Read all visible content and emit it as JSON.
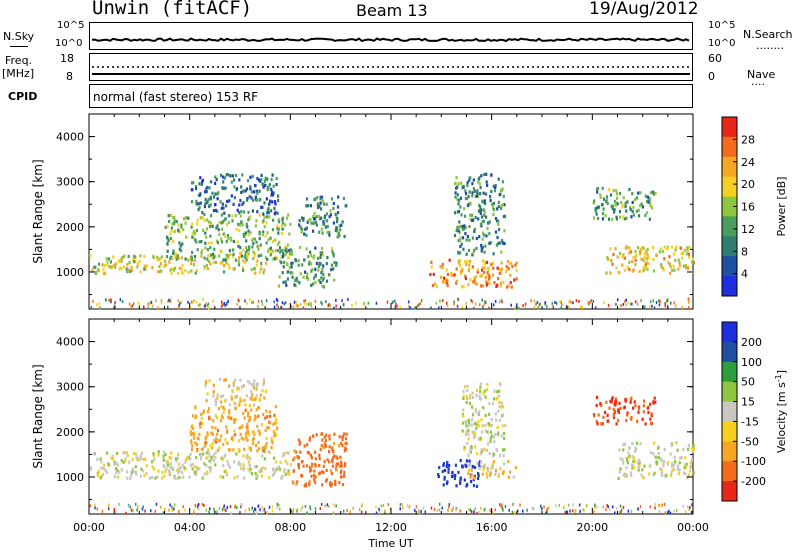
{
  "header": {
    "station": "Unwin (fitACF)",
    "beam": "Beam 13",
    "date": "19/Aug/2012"
  },
  "left_labels": {
    "nsky": "N.Sky",
    "freq": "Freq.",
    "mhz": "[MHz]",
    "cpid": "CPID"
  },
  "right_labels": {
    "nsearch": "N.Search",
    "nave": "Nave",
    "nsearch_dots": "........",
    "nave_dots": "...."
  },
  "noise_panel": {
    "left_top": "10^5",
    "left_bottom": "10^0",
    "right_top": "10^5",
    "right_bottom": "10^0"
  },
  "freq_panel": {
    "left_top": "18",
    "left_bottom": "8",
    "right_top": "60",
    "right_bottom": "0"
  },
  "cpid_text": "normal (fast stereo) 153 RF",
  "colors": {
    "power": [
      "#1f2fe0",
      "#1e4fa0",
      "#2e7d6e",
      "#4a9e5c",
      "#8dc63f",
      "#f5d020",
      "#f5a623",
      "#f36b1c",
      "#e8271b"
    ],
    "velocity": [
      "#e8271b",
      "#f36b1c",
      "#f5a623",
      "#f5d020",
      "#c8c8c0",
      "#8dc63f",
      "#2e9e3c",
      "#1e4fa0",
      "#1f2fe0"
    ]
  },
  "chart_data": [
    {
      "type": "heatmap",
      "quantity": "power",
      "xlabel": "",
      "ylabel": "Slant Range [km]",
      "ylim": [
        180,
        4500
      ],
      "xlim": [
        "00:00",
        "24:00"
      ],
      "yticks": [
        1000,
        2000,
        3000,
        4000
      ],
      "colorbar": {
        "label": "Power [dB]",
        "ticks": [
          4,
          8,
          12,
          16,
          20,
          24,
          28
        ],
        "range": [
          0,
          32
        ]
      },
      "regions": [
        {
          "t0": 0.0,
          "t1": 7.0,
          "r0": 1000,
          "r1": 1400,
          "level": 18
        },
        {
          "t0": 3.0,
          "t1": 8.0,
          "r0": 1300,
          "r1": 2300,
          "level": 14
        },
        {
          "t0": 4.0,
          "t1": 7.5,
          "r0": 2300,
          "r1": 3200,
          "level": 8
        },
        {
          "t0": 8.3,
          "t1": 10.2,
          "r0": 1800,
          "r1": 2700,
          "level": 10
        },
        {
          "t0": 7.5,
          "t1": 9.8,
          "r0": 700,
          "r1": 1600,
          "level": 12
        },
        {
          "t0": 13.5,
          "t1": 17.0,
          "r0": 700,
          "r1": 1300,
          "level": 24
        },
        {
          "t0": 14.5,
          "t1": 16.5,
          "r0": 1400,
          "r1": 3200,
          "level": 10
        },
        {
          "t0": 20.5,
          "t1": 24.0,
          "r0": 1000,
          "r1": 1600,
          "level": 20
        },
        {
          "t0": 20.0,
          "t1": 22.5,
          "r0": 2200,
          "r1": 2900,
          "level": 12
        }
      ]
    },
    {
      "type": "heatmap",
      "quantity": "velocity",
      "xlabel": "Time UT",
      "ylabel": "Slant Range [km]",
      "ylim": [
        180,
        4500
      ],
      "xlim": [
        "00:00",
        "24:00"
      ],
      "xticks": [
        "00:00",
        "04:00",
        "08:00",
        "12:00",
        "16:00",
        "20:00",
        "00:00"
      ],
      "yticks": [
        1000,
        2000,
        3000,
        4000
      ],
      "colorbar": {
        "label": "Velocity [m s^-1]",
        "ticks": [
          200,
          100,
          50,
          15,
          -15,
          -50,
          -100,
          -200
        ]
      },
      "regions": [
        {
          "t0": 0.0,
          "t1": 8.0,
          "r0": 1000,
          "r1": 1600,
          "value": 0
        },
        {
          "t0": 4.0,
          "t1": 7.5,
          "r0": 1600,
          "r1": 2600,
          "value": -50
        },
        {
          "t0": 4.5,
          "t1": 7.0,
          "r0": 2600,
          "r1": 3200,
          "value": -20
        },
        {
          "t0": 8.0,
          "t1": 10.2,
          "r0": 800,
          "r1": 2000,
          "value": -100
        },
        {
          "t0": 13.8,
          "t1": 15.5,
          "r0": 800,
          "r1": 1400,
          "value": 150
        },
        {
          "t0": 15.0,
          "t1": 17.0,
          "r0": 1000,
          "r1": 1400,
          "value": -20
        },
        {
          "t0": 14.8,
          "t1": 16.5,
          "r0": 1500,
          "r1": 3100,
          "value": 0
        },
        {
          "t0": 21.0,
          "t1": 24.0,
          "r0": 1000,
          "r1": 1800,
          "value": 0
        },
        {
          "t0": 20.0,
          "t1": 22.5,
          "r0": 2200,
          "r1": 2800,
          "value": -150
        }
      ]
    }
  ]
}
